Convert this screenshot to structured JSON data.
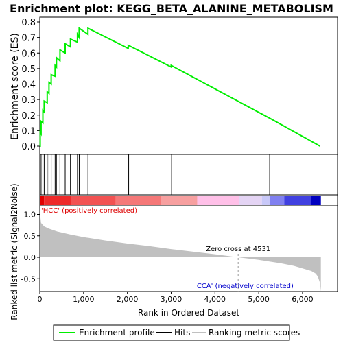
{
  "chart_data": {
    "type": "line",
    "title": "Enrichment plot: KEGG_BETA_ALANINE_METABOLISM",
    "enrichment_panel": {
      "ylabel": "Enrichment score (ES)",
      "ylim": [
        0.0,
        0.8
      ],
      "yticks": [
        {
          "v": 0.0,
          "label": "0.0"
        },
        {
          "v": 0.1,
          "label": "0.1"
        },
        {
          "v": 0.2,
          "label": "0.2"
        },
        {
          "v": 0.3,
          "label": "0.3"
        },
        {
          "v": 0.4,
          "label": "0.4"
        },
        {
          "v": 0.5,
          "label": "0.5"
        },
        {
          "v": 0.6,
          "label": "0.6"
        },
        {
          "v": 0.7,
          "label": "0.7"
        },
        {
          "v": 0.8,
          "label": "0.8"
        }
      ],
      "series_color": "#00ee00",
      "es_x": [
        0,
        10,
        10,
        30,
        30,
        70,
        70,
        100,
        100,
        170,
        170,
        210,
        210,
        260,
        260,
        350,
        350,
        380,
        380,
        460,
        460,
        580,
        580,
        700,
        700,
        860,
        860,
        900,
        900,
        1100,
        1100,
        2020,
        2020,
        3000,
        3000,
        5250,
        5250,
        6400
      ],
      "es_y": [
        0.0,
        0.0,
        0.09,
        0.08,
        0.16,
        0.15,
        0.23,
        0.22,
        0.29,
        0.28,
        0.35,
        0.34,
        0.41,
        0.4,
        0.46,
        0.45,
        0.52,
        0.51,
        0.57,
        0.55,
        0.62,
        0.6,
        0.66,
        0.64,
        0.69,
        0.67,
        0.72,
        0.7,
        0.76,
        0.72,
        0.76,
        0.63,
        0.65,
        0.51,
        0.52,
        0.18,
        0.18,
        0.0
      ]
    },
    "hits": [
      8,
      30,
      70,
      100,
      170,
      210,
      260,
      350,
      380,
      460,
      580,
      700,
      860,
      900,
      1100,
      2030,
      3010,
      5250
    ],
    "heatmap_colors": [
      "#e00000",
      "#ee2a2a",
      "#f25252",
      "#f57878",
      "#f7a0a0",
      "#ffc0e8",
      "#e4d4f4",
      "#c8c8f8",
      "#8080f0",
      "#4040e0",
      "#0000c0"
    ],
    "ranked_panel": {
      "ylabel": "Ranked list metric (Signal2Noise)",
      "ylim": [
        -0.8,
        1.2
      ],
      "yticks": [
        {
          "v": 1.0,
          "label": "1.0"
        },
        {
          "v": 0.5,
          "label": "0.5"
        },
        {
          "v": 0.0,
          "label": "0.0"
        },
        {
          "v": -0.5,
          "label": "-0.5"
        }
      ],
      "fill_color": "#c0c0c0",
      "metric_x": [
        0,
        30,
        100,
        200,
        400,
        700,
        1000,
        1500,
        2000,
        2500,
        3000,
        3500,
        4000,
        4531,
        5000,
        5500,
        5800,
        6000,
        6200,
        6300,
        6350,
        6400,
        6420
      ],
      "metric_y": [
        1.05,
        0.8,
        0.72,
        0.67,
        0.6,
        0.53,
        0.47,
        0.39,
        0.32,
        0.26,
        0.19,
        0.13,
        0.07,
        0.0,
        -0.06,
        -0.14,
        -0.2,
        -0.26,
        -0.32,
        -0.38,
        -0.45,
        -0.6,
        -0.8
      ],
      "zero_cross_label": "Zero cross at 4531",
      "zero_cross_x": 4531,
      "pos_label": "'HCC' (positively correlated)",
      "neg_label": "'CCA' (negatively correlated)"
    },
    "x_axis": {
      "xlabel": "Rank in Ordered Dataset",
      "xlim": [
        0,
        6800
      ],
      "dataset_size": 6420,
      "xticks": [
        {
          "v": 0,
          "label": "0"
        },
        {
          "v": 1000,
          "label": "1,000"
        },
        {
          "v": 2000,
          "label": "2,000"
        },
        {
          "v": 3000,
          "label": "3,000"
        },
        {
          "v": 4000,
          "label": "4,000"
        },
        {
          "v": 5000,
          "label": "5,000"
        },
        {
          "v": 6000,
          "label": "6,000"
        }
      ]
    },
    "legend": {
      "position": "bottom",
      "items": [
        {
          "label": "Enrichment profile",
          "color": "#00ee00"
        },
        {
          "label": "Hits",
          "color": "#000000"
        },
        {
          "label": "Ranking metric scores",
          "color": "#c0c0c0"
        }
      ]
    }
  }
}
